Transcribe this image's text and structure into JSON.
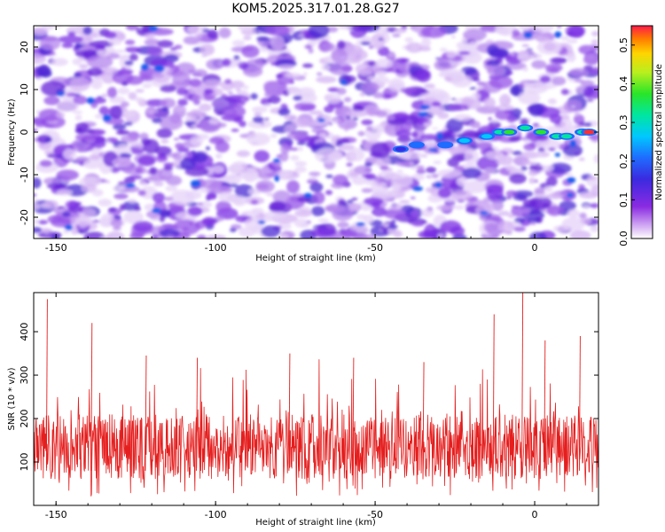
{
  "title": "KOM5.2025.317.01.28.G27",
  "colors": {
    "background_heat": "#ffffff",
    "heat_low": "#d9b8f5",
    "heat_mid": "#7d2be6",
    "heat_high": "#2222d0",
    "snr_line": "#e51e1e",
    "axis": "#000000"
  },
  "chart_data": [
    {
      "type": "heatmap",
      "title": "KOM5.2025.317.01.28.G27",
      "xlabel": "Height of straight line (km)",
      "ylabel": "Frequency (Hz)",
      "xlim": [
        -157,
        20
      ],
      "ylim": [
        -25,
        25
      ],
      "xticks": [
        -150,
        -100,
        -50,
        0
      ],
      "yticks": [
        -20,
        -10,
        0,
        10,
        20
      ],
      "colorbar": {
        "label": "Normalized spectral amplitude",
        "range": [
          0.0,
          0.55
        ],
        "ticks": [
          0.0,
          0.1,
          0.2,
          0.3,
          0.4,
          0.5
        ],
        "colormap": "rainbow (purple-blue-cyan-green-yellow-red)"
      },
      "feature": {
        "description": "ridge of increasing amplitude",
        "points": [
          {
            "x": -42,
            "y": -4,
            "value": 0.14
          },
          {
            "x": -37,
            "y": -3,
            "value": 0.16
          },
          {
            "x": -28,
            "y": -3,
            "value": 0.18
          },
          {
            "x": -22,
            "y": -2,
            "value": 0.2
          },
          {
            "x": -15,
            "y": -1,
            "value": 0.22
          },
          {
            "x": -11,
            "y": 0,
            "value": 0.26
          },
          {
            "x": -8,
            "y": 0,
            "value": 0.34
          },
          {
            "x": -3,
            "y": 1,
            "value": 0.28
          },
          {
            "x": 2,
            "y": 0,
            "value": 0.32
          },
          {
            "x": 7,
            "y": -1,
            "value": 0.3
          },
          {
            "x": 10,
            "y": -1,
            "value": 0.3
          },
          {
            "x": 15,
            "y": 0,
            "value": 0.3
          },
          {
            "x": 17,
            "y": 0,
            "value": 0.5
          }
        ]
      }
    },
    {
      "type": "line",
      "xlabel": "Height of straight line (km)",
      "ylabel": "SNR (10 * v/v)",
      "xlim": [
        -157,
        20
      ],
      "ylim": [
        0,
        490
      ],
      "xticks": [
        -150,
        -100,
        -50,
        0
      ],
      "yticks": [
        100,
        200,
        300,
        400
      ],
      "series": [
        {
          "name": "SNR",
          "description": "dense noisy signal, baseline about 60-180, spikes to about 480",
          "mean": 135,
          "peaks": [
            {
              "x": -153,
              "y": 475
            },
            {
              "x": -139,
              "y": 420
            },
            {
              "x": -122,
              "y": 345
            },
            {
              "x": -106,
              "y": 340
            },
            {
              "x": -77,
              "y": 350
            },
            {
              "x": -57,
              "y": 340
            },
            {
              "x": -35,
              "y": 330
            },
            {
              "x": -13,
              "y": 440
            },
            {
              "x": -4,
              "y": 490
            },
            {
              "x": 3,
              "y": 380
            },
            {
              "x": 14,
              "y": 390
            }
          ]
        }
      ]
    }
  ]
}
